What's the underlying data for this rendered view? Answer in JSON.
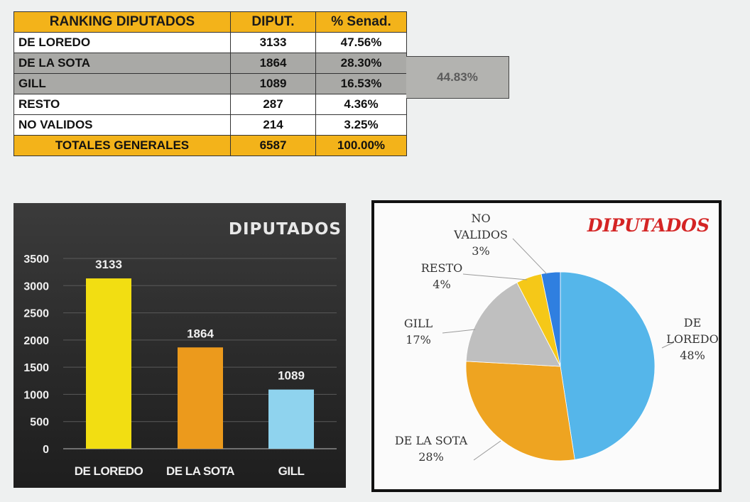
{
  "table": {
    "headers": [
      "RANKING DIPUTADOS",
      "DIPUT.",
      "% Senad."
    ],
    "rows": [
      {
        "name": "DE LOREDO",
        "votes": "3133",
        "pct": "47.56%"
      },
      {
        "name": "DE LA SOTA",
        "votes": "1864",
        "pct": "28.30%"
      },
      {
        "name": "GILL",
        "votes": "1089",
        "pct": "16.53%"
      },
      {
        "name": "RESTO",
        "votes": "287",
        "pct": "4.36%"
      },
      {
        "name": "NO VALIDOS",
        "votes": "214",
        "pct": "3.25%"
      }
    ],
    "total": {
      "name": "TOTALES GENERALES",
      "votes": "6587",
      "pct": "100.00%"
    },
    "combined_pct": "44.83%"
  },
  "colors": {
    "header_orange": "#f3b31a",
    "gray_rows": "#a9a9a6",
    "bar_yellow": "#f2de12",
    "bar_orange": "#ec9a1c",
    "bar_lightblue": "#8fd3ee",
    "pie_blue": "#55b6ea",
    "pie_orange": "#eea421",
    "pie_gray": "#bfbfbf",
    "pie_yellow": "#f5c818",
    "pie_darkblue": "#2f7fe0",
    "pie_title_red": "#d42424"
  },
  "chart_data": [
    {
      "type": "bar",
      "title": "DIPUTADOS",
      "categories": [
        "DE LOREDO",
        "DE LA SOTA",
        "GILL"
      ],
      "values": [
        3133,
        1864,
        1089
      ],
      "data_labels": [
        "3133",
        "1864",
        "1089"
      ],
      "ylim": [
        0,
        3500
      ],
      "yticks": [
        "0",
        "500",
        "1000",
        "1500",
        "2000",
        "2500",
        "3000",
        "3500"
      ],
      "xlabel": "",
      "ylabel": "",
      "grid": true,
      "legend": "none"
    },
    {
      "type": "pie",
      "title": "DIPUTADOS",
      "slices": [
        {
          "label": "DE LOREDO",
          "value": 3133,
          "pct_label": "48%"
        },
        {
          "label": "DE LA SOTA",
          "value": 1864,
          "pct_label": "28%"
        },
        {
          "label": "GILL",
          "value": 1089,
          "pct_label": "17%"
        },
        {
          "label": "RESTO",
          "value": 287,
          "pct_label": "4%"
        },
        {
          "label": "NO VALIDOS",
          "value": 214,
          "pct_label": "3%"
        }
      ],
      "legend": "none"
    }
  ]
}
